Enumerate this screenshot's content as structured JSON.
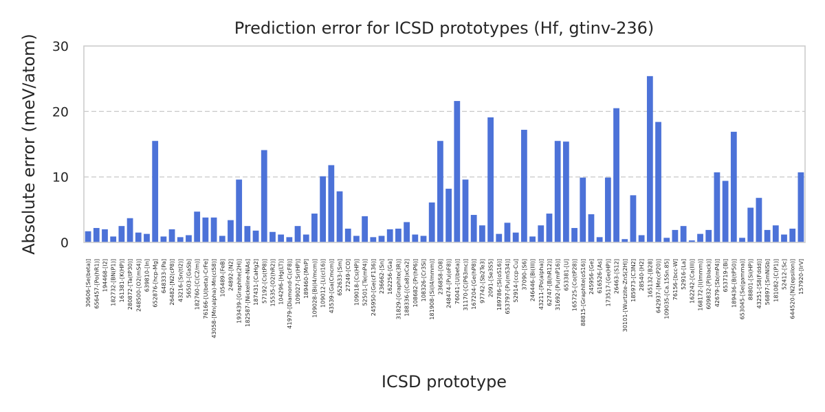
{
  "chart_data": {
    "type": "bar",
    "title": "Prediction error for ICSD prototypes (Hf, gtinv-236)",
    "xlabel": "ICSD prototype",
    "ylabel": "Absolute error (meV/atom)",
    "ylim": [
      0,
      30
    ],
    "yticks": [
      0,
      10,
      20,
      30
    ],
    "grid": true,
    "bar_color": "#4c72d8",
    "categories": [
      "30606-[Se(beta)]",
      "656457-[Po(hR1)]",
      "194468-[I2]",
      "182732-[BN(P1)]",
      "161381-[K(HP)]",
      "280872-[Ta(tP30)]",
      "248500-[O2(mS4)]",
      "639810-[In]",
      "652876-[hcp-Mg]",
      "648333-[Pa]",
      "26482-[N2(cP8)]",
      "43216-[Sn(tI2)]",
      "56503-[GaSb]",
      "182760-[C(C2/m)]",
      "76166-[U(beta)-CrFe]",
      "43058-[Mn(alpha)-Mn(cI58)]",
      "105489-[FeB]",
      "24892-[N2]",
      "193439-[Graphite(2H)]",
      "182587-[Nickeline-NiAs]",
      "187431-[CaHg2]",
      "57192-[Cs(tP8)]",
      "15535-[O2(hR2)]",
      "104296-[Hg(LT)]",
      "41979-[Diamond-C(cF8)]",
      "109027-[Sr(HP)]",
      "189460-[MnP]",
      "109028-[Bi(I4/mcm)]",
      "109012-[Li(cI16)]",
      "43539-[Ga(Cmcm)]",
      "652633-[Sm]",
      "27249-[CO]",
      "109018-[Cs(HP)]",
      "52501-[Te(mP4)]",
      "245950-[Ge(cF136)]",
      "236662-[Sn]",
      "162256-[Ga]",
      "31829-[Graphite(3R)]",
      "188336-[(Ca8)xCa2]",
      "108682-[Pr(hP6)]",
      "108326-[Cr3Si]",
      "181908-[Si(I4/mmm)]",
      "236858-[O8]",
      "248474-[Pu(oF8)]",
      "76041-[U(beta)]",
      "31170-[C(P63mc)]",
      "167204-[Ge(hP8)]",
      "97742-[Sb2Te3]",
      "2091-[Se3S5]",
      "189786-[Si(oS16)]",
      "653797-[Pu(mS34)]",
      "52914-[ccp-Cu]",
      "37090-[S6]",
      "246446-[Bi(III)]",
      "43211-[Po(alpha)]",
      "62747-[B(hR12)]",
      "31692-[Pu(mP16)]",
      "653381-[U]",
      "165725-[Co(tP28)]",
      "88815-[Graphite(oS16)]",
      "245956-[Ge]",
      "616526-[As]",
      "173517-[Ge(HP)]",
      "26463-[S12]",
      "30101-[Wurtzite-ZnS(2H)]",
      "185973-[C3N2]",
      "28540-[H2]",
      "165132-[B28]",
      "642937-[Mn(cP20)]",
      "109035-[Ca.15Sn.85]",
      "76156-[bcc-W]",
      "52916-[La]",
      "162242-[Ca(III)]",
      "168172-[I(Immm)]",
      "609832-[P(black)]",
      "42679-[Sb(mP4)]",
      "653719-[Bi]",
      "189436-[B(tP50)]",
      "653045-[Se(gamma)]",
      "88801-[Si(HP)]",
      "43251-[S8(Fddd)]",
      "56897-[SmNiSb]",
      "181082-[C(P1)]",
      "52412-[Sc]",
      "644520-[N2(epsilon)]",
      "157920-[IrV]"
    ],
    "values": [
      1.7,
      2.2,
      2.0,
      0.9,
      2.5,
      3.7,
      1.5,
      1.3,
      15.5,
      0.9,
      2.0,
      0.8,
      1.1,
      4.7,
      3.8,
      3.8,
      1.0,
      3.4,
      9.6,
      2.5,
      1.8,
      14.1,
      1.6,
      1.2,
      0.8,
      2.5,
      1.2,
      4.4,
      10.1,
      11.8,
      7.8,
      2.1,
      1.0,
      4.0,
      0.8,
      1.0,
      2.0,
      2.1,
      3.1,
      1.2,
      1.0,
      6.1,
      15.5,
      8.2,
      21.6,
      9.6,
      4.2,
      2.6,
      19.1,
      1.3,
      3.0,
      1.5,
      17.2,
      0.9,
      2.6,
      4.4,
      15.5,
      15.4,
      2.2,
      9.9,
      4.3,
      0.8,
      9.9,
      20.5,
      0.5,
      7.2,
      1.1,
      25.4,
      18.4,
      0.7,
      1.9,
      2.5,
      0.3,
      1.3,
      1.9,
      10.7,
      9.4,
      16.9,
      0.7,
      5.3,
      6.8,
      1.9,
      2.6,
      1.2,
      2.1,
      10.7
    ]
  }
}
